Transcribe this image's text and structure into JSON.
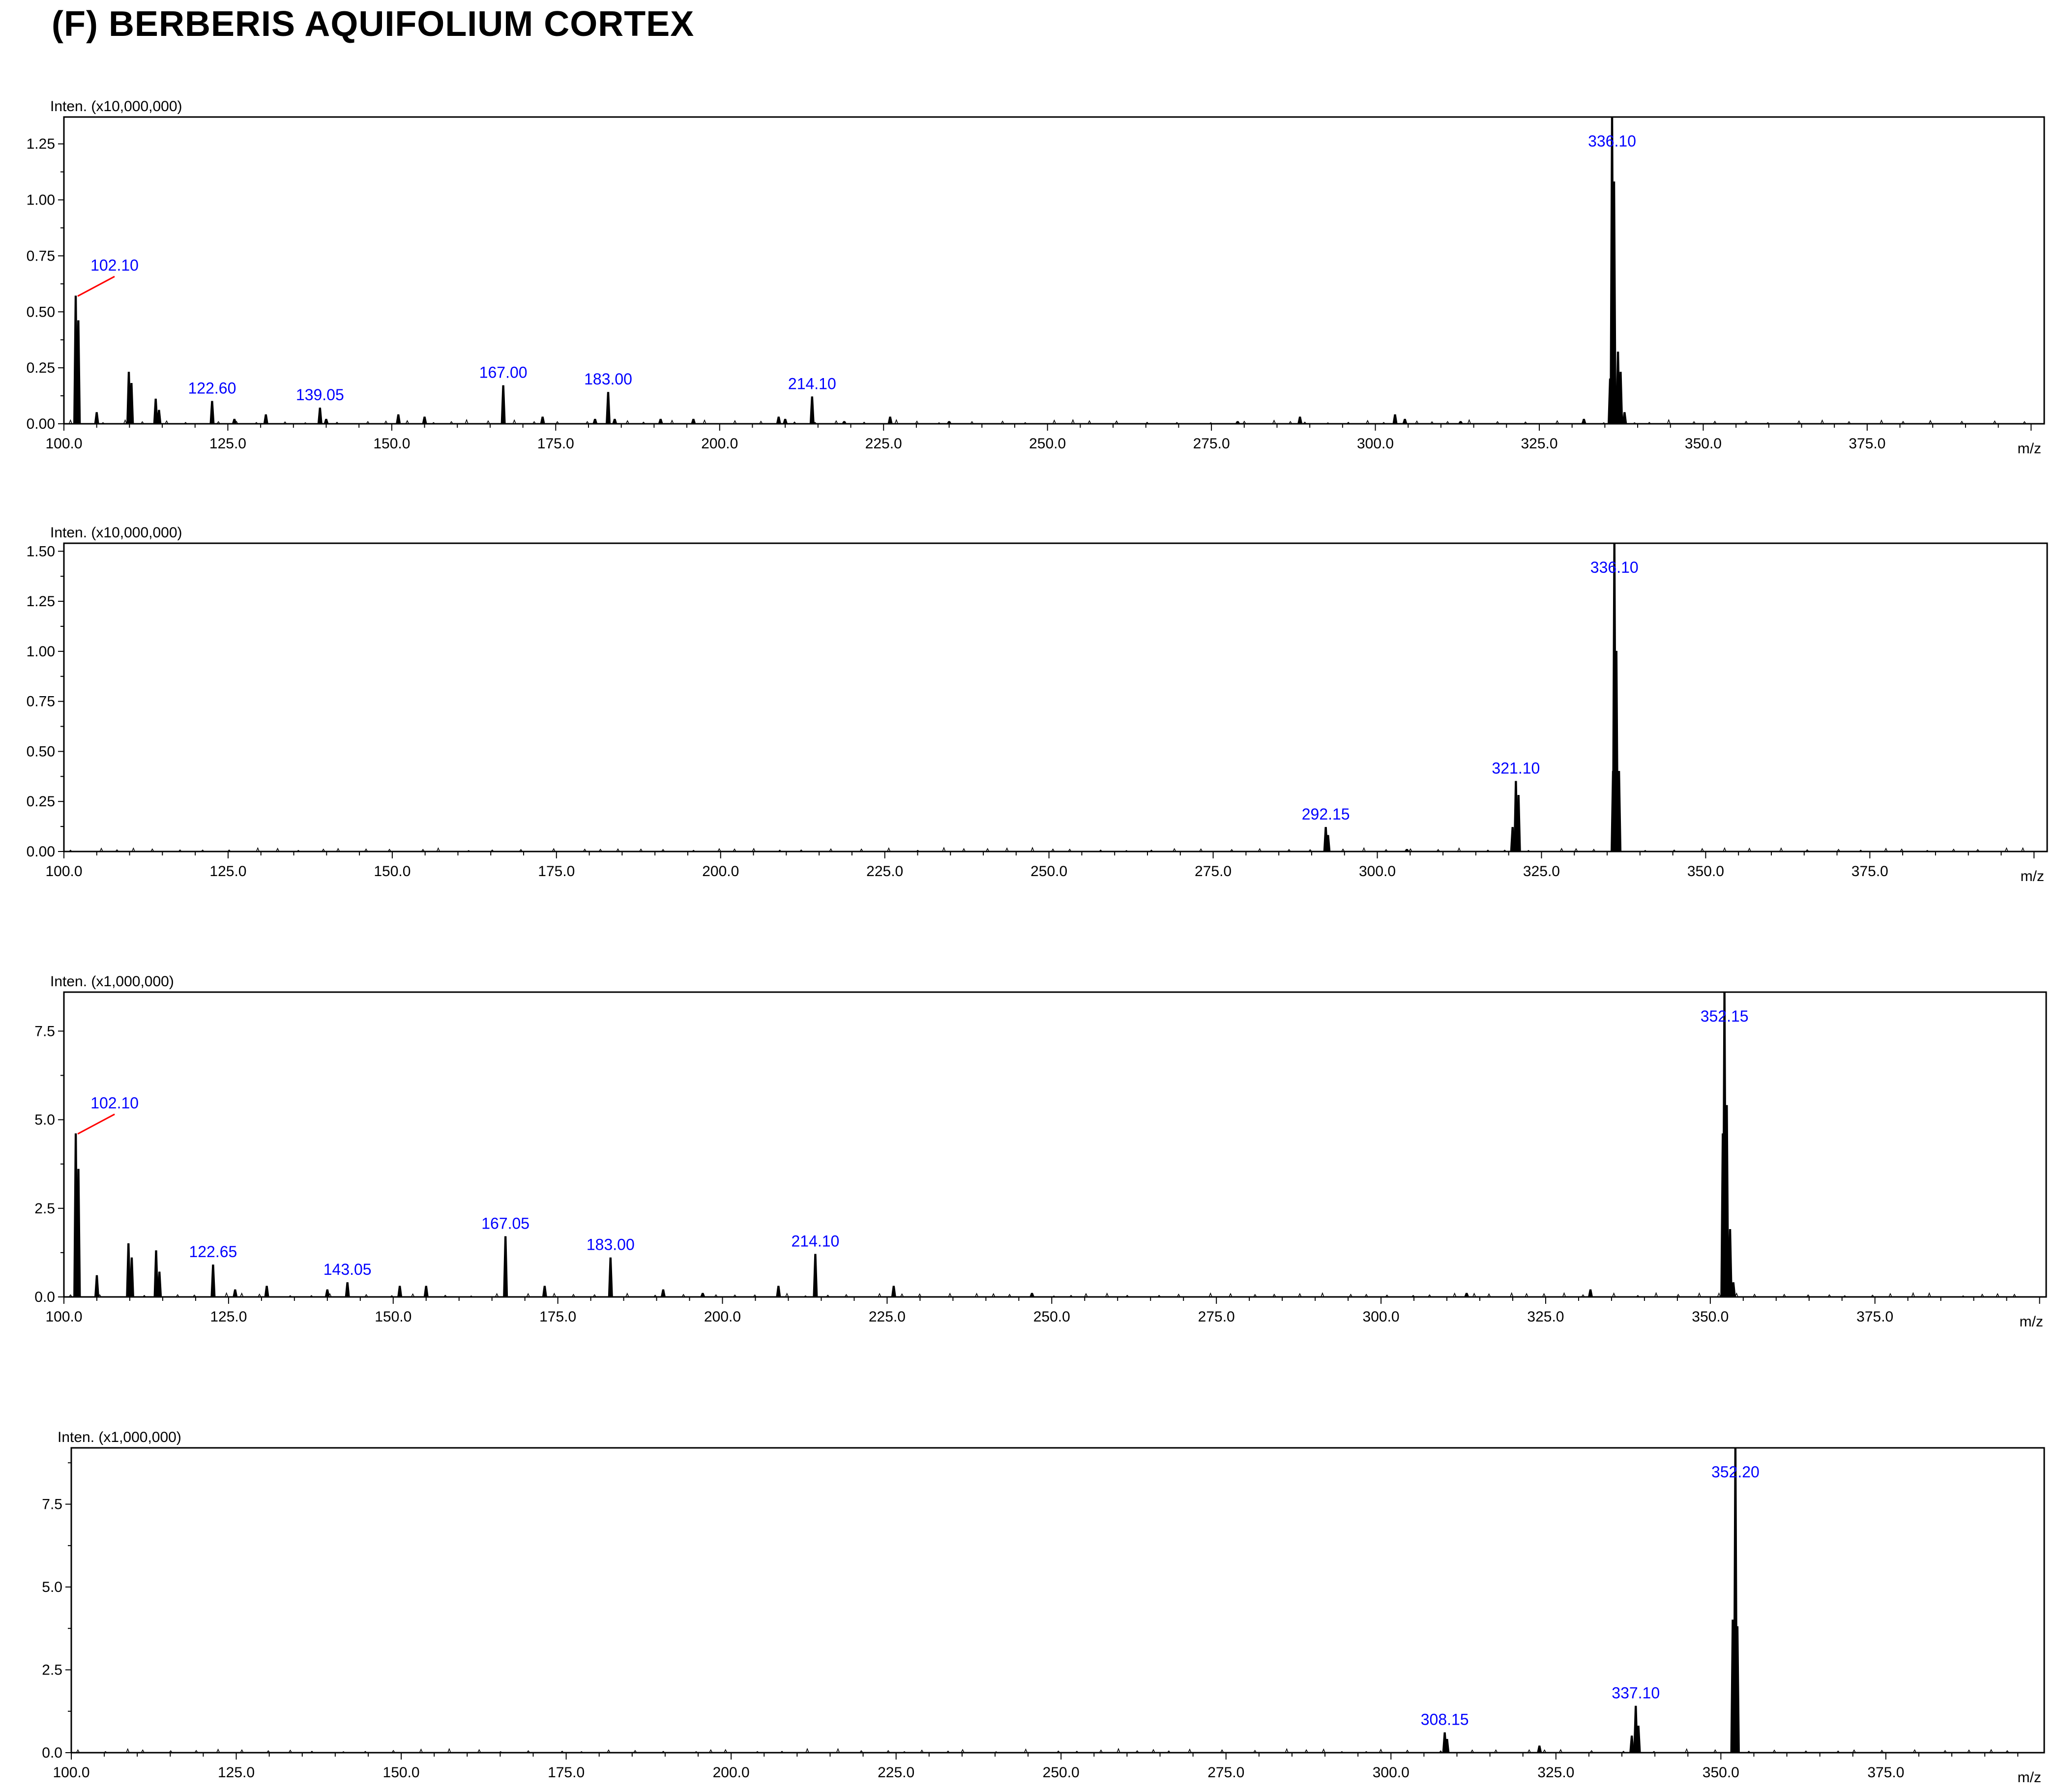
{
  "title": "(F) BERBERIS AQUIFOLIUM CORTEX",
  "colors": {
    "peak_label": "#0000ff",
    "leader_line": "#ff0000",
    "bars": "#000000",
    "frame": "#000000"
  },
  "chart_data": [
    {
      "type": "bar",
      "ylabel": "Inten. (x10,000,000)",
      "xlabel": "m/z",
      "xlim": [
        100,
        402
      ],
      "ylim": [
        0,
        1.37
      ],
      "xticks": [
        "100.0",
        "125.0",
        "150.0",
        "175.0",
        "200.0",
        "225.0",
        "250.0",
        "275.0",
        "300.0",
        "325.0",
        "350.0",
        "375.0"
      ],
      "yticks": [
        "0.00",
        "0.25",
        "0.50",
        "0.75",
        "1.00",
        "1.25"
      ],
      "ytick_values": [
        0,
        0.25,
        0.5,
        0.75,
        1.0,
        1.25
      ],
      "peaks": [
        {
          "x": 101.8,
          "y": 0.57
        },
        {
          "x": 102.2,
          "y": 0.46
        },
        {
          "x": 105.0,
          "y": 0.05
        },
        {
          "x": 109.9,
          "y": 0.23
        },
        {
          "x": 110.3,
          "y": 0.18
        },
        {
          "x": 114.0,
          "y": 0.11
        },
        {
          "x": 114.5,
          "y": 0.06
        },
        {
          "x": 122.6,
          "y": 0.1
        },
        {
          "x": 126.0,
          "y": 0.02
        },
        {
          "x": 130.8,
          "y": 0.04
        },
        {
          "x": 139.05,
          "y": 0.07
        },
        {
          "x": 140.0,
          "y": 0.02
        },
        {
          "x": 151.0,
          "y": 0.04
        },
        {
          "x": 155.0,
          "y": 0.03
        },
        {
          "x": 167.0,
          "y": 0.17
        },
        {
          "x": 173.0,
          "y": 0.03
        },
        {
          "x": 181.0,
          "y": 0.02
        },
        {
          "x": 183.0,
          "y": 0.14
        },
        {
          "x": 184.0,
          "y": 0.02
        },
        {
          "x": 191.0,
          "y": 0.02
        },
        {
          "x": 196.0,
          "y": 0.02
        },
        {
          "x": 209.0,
          "y": 0.03
        },
        {
          "x": 210.0,
          "y": 0.02
        },
        {
          "x": 214.1,
          "y": 0.12
        },
        {
          "x": 219.0,
          "y": 0.01
        },
        {
          "x": 226.0,
          "y": 0.03
        },
        {
          "x": 235.0,
          "y": 0.01
        },
        {
          "x": 279.0,
          "y": 0.01
        },
        {
          "x": 288.5,
          "y": 0.03
        },
        {
          "x": 303.0,
          "y": 0.04
        },
        {
          "x": 304.5,
          "y": 0.02
        },
        {
          "x": 313.0,
          "y": 0.01
        },
        {
          "x": 331.8,
          "y": 0.02
        },
        {
          "x": 335.8,
          "y": 0.2
        },
        {
          "x": 336.1,
          "y": 1.37
        },
        {
          "x": 336.4,
          "y": 1.08
        },
        {
          "x": 337.0,
          "y": 0.32
        },
        {
          "x": 337.4,
          "y": 0.23
        },
        {
          "x": 338.0,
          "y": 0.05
        }
      ],
      "labels": [
        {
          "x": 102.1,
          "y": 0.57,
          "text": "102.10",
          "leader": true
        },
        {
          "x": 122.6,
          "y": 0.1,
          "text": "122.60"
        },
        {
          "x": 139.05,
          "y": 0.07,
          "text": "139.05"
        },
        {
          "x": 167.0,
          "y": 0.17,
          "text": "167.00"
        },
        {
          "x": 183.0,
          "y": 0.14,
          "text": "183.00"
        },
        {
          "x": 214.1,
          "y": 0.12,
          "text": "214.10"
        },
        {
          "x": 336.1,
          "y": 1.37,
          "text": "336.10",
          "top": true
        }
      ]
    },
    {
      "type": "bar",
      "ylabel": "Inten. (x10,000,000)",
      "xlabel": "m/z",
      "xlim": [
        100,
        402
      ],
      "ylim": [
        0,
        1.54
      ],
      "xticks": [
        "100.0",
        "125.0",
        "150.0",
        "175.0",
        "200.0",
        "225.0",
        "250.0",
        "275.0",
        "300.0",
        "325.0",
        "350.0",
        "375.0"
      ],
      "yticks": [
        "0.00",
        "0.25",
        "0.50",
        "0.75",
        "1.00",
        "1.25",
        "1.50"
      ],
      "ytick_values": [
        0,
        0.25,
        0.5,
        0.75,
        1.0,
        1.25,
        1.5
      ],
      "peaks": [
        {
          "x": 292.15,
          "y": 0.12
        },
        {
          "x": 292.5,
          "y": 0.08
        },
        {
          "x": 304.5,
          "y": 0.01
        },
        {
          "x": 320.6,
          "y": 0.12
        },
        {
          "x": 321.1,
          "y": 0.35
        },
        {
          "x": 321.5,
          "y": 0.28
        },
        {
          "x": 335.9,
          "y": 0.4
        },
        {
          "x": 336.1,
          "y": 1.54
        },
        {
          "x": 336.4,
          "y": 1.0
        },
        {
          "x": 336.8,
          "y": 0.4
        }
      ],
      "labels": [
        {
          "x": 292.15,
          "y": 0.12,
          "text": "292.15"
        },
        {
          "x": 321.1,
          "y": 0.35,
          "text": "321.10"
        },
        {
          "x": 336.1,
          "y": 1.54,
          "text": "336.10",
          "top": true
        }
      ]
    },
    {
      "type": "bar",
      "ylabel": "Inten. (x1,000,000)",
      "xlabel": "m/z",
      "xlim": [
        100,
        401
      ],
      "ylim": [
        0,
        8.6
      ],
      "xticks": [
        "100.0",
        "125.0",
        "150.0",
        "175.0",
        "200.0",
        "225.0",
        "250.0",
        "275.0",
        "300.0",
        "325.0",
        "350.0",
        "375.0"
      ],
      "yticks": [
        "0.0",
        "2.5",
        "5.0",
        "7.5"
      ],
      "ytick_values": [
        0,
        2.5,
        5.0,
        7.5
      ],
      "peaks": [
        {
          "x": 101.8,
          "y": 4.6
        },
        {
          "x": 102.2,
          "y": 3.6
        },
        {
          "x": 105.0,
          "y": 0.6
        },
        {
          "x": 109.8,
          "y": 1.5
        },
        {
          "x": 110.3,
          "y": 1.1
        },
        {
          "x": 114.0,
          "y": 1.3
        },
        {
          "x": 114.5,
          "y": 0.7
        },
        {
          "x": 122.65,
          "y": 0.9
        },
        {
          "x": 126.0,
          "y": 0.2
        },
        {
          "x": 130.8,
          "y": 0.3
        },
        {
          "x": 140.0,
          "y": 0.2
        },
        {
          "x": 143.05,
          "y": 0.4
        },
        {
          "x": 151.0,
          "y": 0.3
        },
        {
          "x": 155.0,
          "y": 0.3
        },
        {
          "x": 167.05,
          "y": 1.7
        },
        {
          "x": 173.0,
          "y": 0.3
        },
        {
          "x": 183.0,
          "y": 1.1
        },
        {
          "x": 191.0,
          "y": 0.2
        },
        {
          "x": 197.0,
          "y": 0.1
        },
        {
          "x": 208.5,
          "y": 0.3
        },
        {
          "x": 214.1,
          "y": 1.2
        },
        {
          "x": 226.0,
          "y": 0.3
        },
        {
          "x": 247.0,
          "y": 0.1
        },
        {
          "x": 313.0,
          "y": 0.1
        },
        {
          "x": 331.8,
          "y": 0.2
        },
        {
          "x": 351.9,
          "y": 4.6
        },
        {
          "x": 352.15,
          "y": 8.6
        },
        {
          "x": 352.5,
          "y": 5.4
        },
        {
          "x": 353.0,
          "y": 1.9
        },
        {
          "x": 353.5,
          "y": 0.4
        }
      ],
      "labels": [
        {
          "x": 102.1,
          "y": 4.6,
          "text": "102.10",
          "leader": true
        },
        {
          "x": 122.65,
          "y": 0.9,
          "text": "122.65"
        },
        {
          "x": 143.05,
          "y": 0.4,
          "text": "143.05"
        },
        {
          "x": 167.05,
          "y": 1.7,
          "text": "167.05"
        },
        {
          "x": 183.0,
          "y": 1.1,
          "text": "183.00"
        },
        {
          "x": 214.1,
          "y": 1.2,
          "text": "214.10"
        },
        {
          "x": 352.15,
          "y": 8.6,
          "text": "352.15",
          "top": true
        }
      ]
    },
    {
      "type": "bar",
      "ylabel": "Inten. (x1,000,000)",
      "xlabel": "m/z",
      "xlim": [
        100,
        399
      ],
      "ylim": [
        0,
        9.2
      ],
      "xticks": [
        "100.0",
        "125.0",
        "150.0",
        "175.0",
        "200.0",
        "225.0",
        "250.0",
        "275.0",
        "300.0",
        "325.0",
        "350.0",
        "375.0"
      ],
      "yticks": [
        "0.0",
        "2.5",
        "5.0",
        "7.5"
      ],
      "ytick_values": [
        0,
        2.5,
        5.0,
        7.5
      ],
      "peaks": [
        {
          "x": 308.15,
          "y": 0.6
        },
        {
          "x": 308.5,
          "y": 0.4
        },
        {
          "x": 322.5,
          "y": 0.2
        },
        {
          "x": 336.5,
          "y": 0.5
        },
        {
          "x": 337.1,
          "y": 1.4
        },
        {
          "x": 337.5,
          "y": 0.8
        },
        {
          "x": 351.8,
          "y": 4.0
        },
        {
          "x": 352.2,
          "y": 9.2
        },
        {
          "x": 352.5,
          "y": 3.8
        }
      ],
      "labels": [
        {
          "x": 308.15,
          "y": 0.6,
          "text": "308.15"
        },
        {
          "x": 337.1,
          "y": 1.4,
          "text": "337.10"
        },
        {
          "x": 352.2,
          "y": 9.2,
          "text": "352.20",
          "top": true
        }
      ]
    }
  ]
}
